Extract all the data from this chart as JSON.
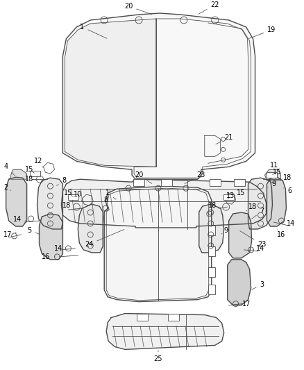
{
  "bg_color": "#ffffff",
  "line_color": "#4a4a4a",
  "label_color": "#000000",
  "figsize": [
    4.38,
    5.33
  ],
  "dpi": 100
}
